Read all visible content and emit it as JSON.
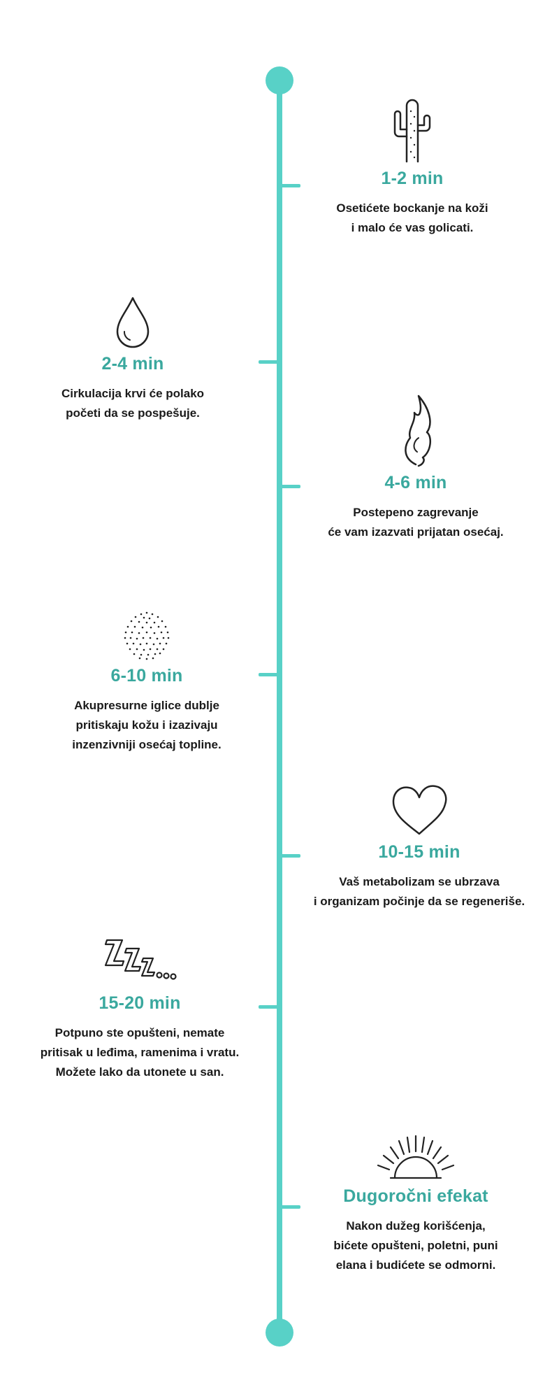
{
  "accent_color": "#58d1c7",
  "title_color": "#3aa89e",
  "entries": [
    {
      "icon": "cactus-icon",
      "time": "1-2 min",
      "desc": "Osetićete bockanje na koži\ni malo će vas golicati."
    },
    {
      "icon": "water-drop-icon",
      "time": "2-4 min",
      "desc": "Cirkulacija krvi će polako\npočeti da se pospešuje."
    },
    {
      "icon": "flame-icon",
      "time": "4-6 min",
      "desc": "Postepeno zagrevanje\nće vam izazvati prijatan osećaj."
    },
    {
      "icon": "dots-circle-icon",
      "time": "6-10 min",
      "desc": "Akupresurne iglice dublje\npritiskaju kožu i izazivaju\ninzenzivniji osećaj topline."
    },
    {
      "icon": "heart-icon",
      "time": "10-15 min",
      "desc": "Vaš metabolizam se ubrzava\ni organizam počinje da se regeneriše."
    },
    {
      "icon": "sleep-zzz-icon",
      "time": "15-20 min",
      "desc": "Potpuno ste opušteni, nemate\npritisak u leđima, ramenima i vratu.\nMožete lako da utonete u san."
    },
    {
      "icon": "sunrise-icon",
      "time": "Dugoročni efekat",
      "desc": "Nakon dužeg korišćenja,\nbićete opušteni, poletni, puni\nelana i budićete se odmorni."
    }
  ]
}
